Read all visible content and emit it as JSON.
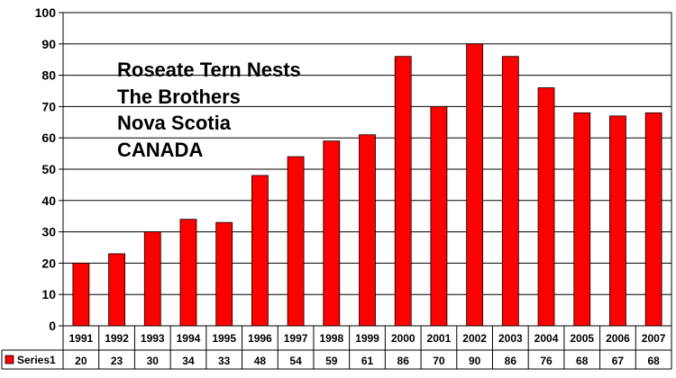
{
  "chart_data": {
    "type": "bar",
    "title_lines": [
      "Roseate Tern Nests",
      "The Brothers",
      "Nova Scotia",
      "CANADA"
    ],
    "categories": [
      "1991",
      "1992",
      "1993",
      "1994",
      "1995",
      "1996",
      "1997",
      "1998",
      "1999",
      "2000",
      "2001",
      "2002",
      "2003",
      "2004",
      "2005",
      "2006",
      "2007"
    ],
    "series": [
      {
        "name": "Series1",
        "values": [
          20,
          23,
          30,
          34,
          33,
          48,
          54,
          59,
          61,
          86,
          70,
          90,
          86,
          76,
          68,
          67,
          68
        ]
      }
    ],
    "ylim": [
      0,
      100
    ],
    "yticks": [
      0,
      10,
      20,
      30,
      40,
      50,
      60,
      70,
      80,
      90,
      100
    ],
    "grid": true,
    "data_table": true,
    "xlabel": "",
    "ylabel": "",
    "colors": {
      "bar": "#ff0000",
      "bar_stroke": "#000000",
      "grid": "#000000",
      "legend_key": "#ff0000"
    }
  }
}
